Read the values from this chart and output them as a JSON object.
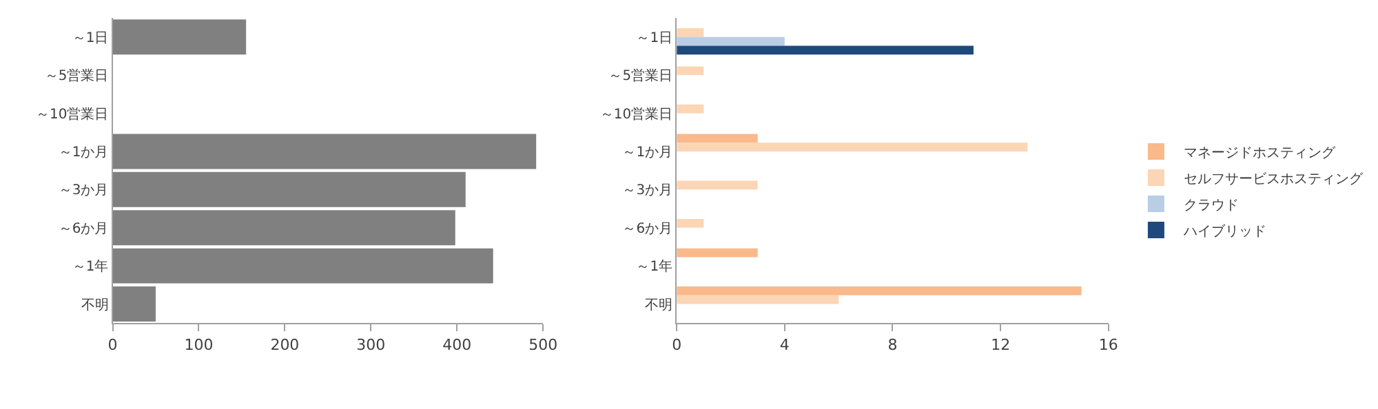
{
  "chart_data": [
    {
      "type": "bar",
      "orientation": "horizontal",
      "categories": [
        "～1日",
        "～5営業日",
        "～10営業日",
        "～1か月",
        "～3か月",
        "～6か月",
        "～1年",
        "不明"
      ],
      "series": [
        {
          "color": "#808080",
          "values": [
            155,
            null,
            null,
            492,
            410,
            398,
            442,
            50
          ]
        }
      ],
      "xlim": [
        0,
        500
      ],
      "xticks": [
        0,
        100,
        200,
        300,
        400,
        500
      ],
      "legend": false
    },
    {
      "type": "bar",
      "orientation": "horizontal",
      "categories": [
        "～1日",
        "～5営業日",
        "～10営業日",
        "～1か月",
        "～3か月",
        "～6か月",
        "～1年",
        "不明"
      ],
      "series": [
        {
          "name": "マネージドホスティング",
          "color": "#f9b98a",
          "values": [
            null,
            null,
            null,
            3,
            null,
            null,
            3,
            15
          ]
        },
        {
          "name": "セルフサービスホスティング",
          "color": "#fcd5b4",
          "values": [
            1,
            1,
            1,
            13,
            3,
            1,
            null,
            6
          ]
        },
        {
          "name": "クラウド",
          "color": "#b9cde5",
          "values": [
            4,
            null,
            null,
            null,
            null,
            null,
            null,
            null
          ]
        },
        {
          "name": "ハイブリッド",
          "color": "#1f497d",
          "values": [
            11,
            null,
            null,
            null,
            null,
            null,
            null,
            null
          ]
        }
      ],
      "xlim": [
        0,
        16
      ],
      "xticks": [
        0,
        4,
        8,
        12,
        16
      ],
      "legend": "right"
    }
  ]
}
